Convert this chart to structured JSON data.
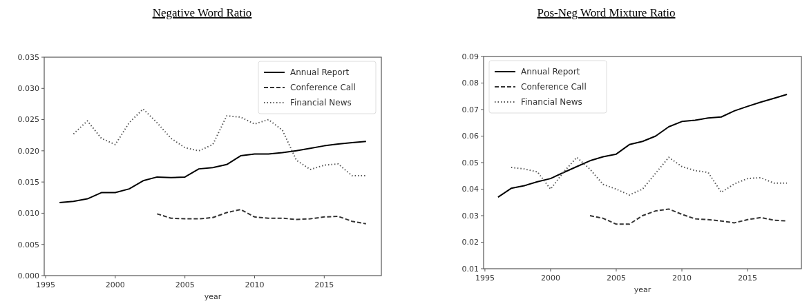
{
  "chart_data": [
    {
      "type": "line",
      "title": "Negative Word Ratio",
      "xlabel": "year",
      "x": [
        1996,
        1997,
        1998,
        1999,
        2000,
        2001,
        2002,
        2003,
        2004,
        2005,
        2006,
        2007,
        2008,
        2009,
        2010,
        2011,
        2012,
        2013,
        2014,
        2015,
        2016,
        2017,
        2018
      ],
      "xlim": [
        1994.9,
        2019.1
      ],
      "xticks": [
        1995,
        2000,
        2005,
        2010,
        2015
      ],
      "ylim": [
        0,
        0.035
      ],
      "yticks": [
        {
          "value": 0,
          "label": "0.000"
        },
        {
          "value": 0.005,
          "label": "0.005"
        },
        {
          "value": 0.01,
          "label": "0.010"
        },
        {
          "value": 0.015,
          "label": "0.015"
        },
        {
          "value": 0.02,
          "label": "0.020"
        },
        {
          "value": 0.025,
          "label": "0.025"
        },
        {
          "value": 0.03,
          "label": "0.030"
        },
        {
          "value": 0.035,
          "label": "0.035"
        }
      ],
      "legend": "top right",
      "grid": false,
      "series": [
        {
          "name": "Annual Report",
          "color": "#000000",
          "line_style": "solid",
          "values": [
            0.0117,
            0.0119,
            0.0123,
            0.0133,
            0.0133,
            0.0139,
            0.0152,
            0.0158,
            0.0157,
            0.0158,
            0.0171,
            0.0173,
            0.0178,
            0.0192,
            0.0195,
            0.0195,
            0.0197,
            0.02,
            0.0204,
            0.0208,
            0.0211,
            0.0213,
            0.0215
          ]
        },
        {
          "name": "Conference Call",
          "color": "#333333",
          "line_style": "dashed",
          "values": [
            null,
            null,
            null,
            null,
            null,
            null,
            null,
            0.0099,
            0.0092,
            0.0091,
            0.0091,
            0.0093,
            0.0101,
            0.0106,
            0.0094,
            0.0092,
            0.0092,
            0.009,
            0.0091,
            0.0094,
            0.0095,
            0.0087,
            0.0083
          ]
        },
        {
          "name": "Financial News",
          "color": "#555555",
          "line_style": "dotted",
          "values": [
            null,
            0.0227,
            0.0248,
            0.022,
            0.021,
            0.0245,
            0.0267,
            0.0245,
            0.022,
            0.0205,
            0.02,
            0.021,
            0.0256,
            0.0254,
            0.0243,
            0.025,
            0.0233,
            0.0185,
            0.017,
            0.0177,
            0.0179,
            0.016,
            0.016
          ]
        }
      ]
    },
    {
      "type": "line",
      "title": "Pos-Neg Word Mixture Ratio",
      "xlabel": "year",
      "x": [
        1996,
        1997,
        1998,
        1999,
        2000,
        2001,
        2002,
        2003,
        2004,
        2005,
        2006,
        2007,
        2008,
        2009,
        2010,
        2011,
        2012,
        2013,
        2014,
        2015,
        2016,
        2017,
        2018
      ],
      "xlim": [
        1994.9,
        2019.1
      ],
      "xticks": [
        1995,
        2000,
        2005,
        2010,
        2015
      ],
      "ylim": [
        0.01,
        0.09
      ],
      "yticks": [
        0.01,
        0.02,
        0.03,
        0.04,
        0.05,
        0.06,
        0.07,
        0.08,
        0.09
      ],
      "legend": "top left",
      "grid": false,
      "series": [
        {
          "name": "Annual Report",
          "color": "#000000",
          "line_style": "solid",
          "values": [
            0.037,
            0.0403,
            0.0413,
            0.0428,
            0.044,
            0.0463,
            0.0485,
            0.0507,
            0.0522,
            0.0532,
            0.0568,
            0.058,
            0.06,
            0.0635,
            0.0655,
            0.066,
            0.0668,
            0.0672,
            0.0695,
            0.0712,
            0.0728,
            0.0742,
            0.0757
          ]
        },
        {
          "name": "Conference Call",
          "color": "#333333",
          "line_style": "dashed",
          "values": [
            null,
            null,
            null,
            null,
            null,
            null,
            null,
            0.03,
            0.029,
            0.0268,
            0.0268,
            0.03,
            0.0318,
            0.0325,
            0.0305,
            0.0288,
            0.0285,
            0.028,
            0.0273,
            0.0285,
            0.0293,
            0.0283,
            0.028
          ]
        },
        {
          "name": "Financial News",
          "color": "#555555",
          "line_style": "dotted",
          "values": [
            null,
            0.0482,
            0.0476,
            0.0465,
            0.04,
            0.0465,
            0.052,
            0.0475,
            0.0418,
            0.04,
            0.0378,
            0.04,
            0.046,
            0.052,
            0.0485,
            0.047,
            0.0463,
            0.0388,
            0.042,
            0.044,
            0.0443,
            0.0423,
            0.0423
          ]
        }
      ]
    }
  ]
}
